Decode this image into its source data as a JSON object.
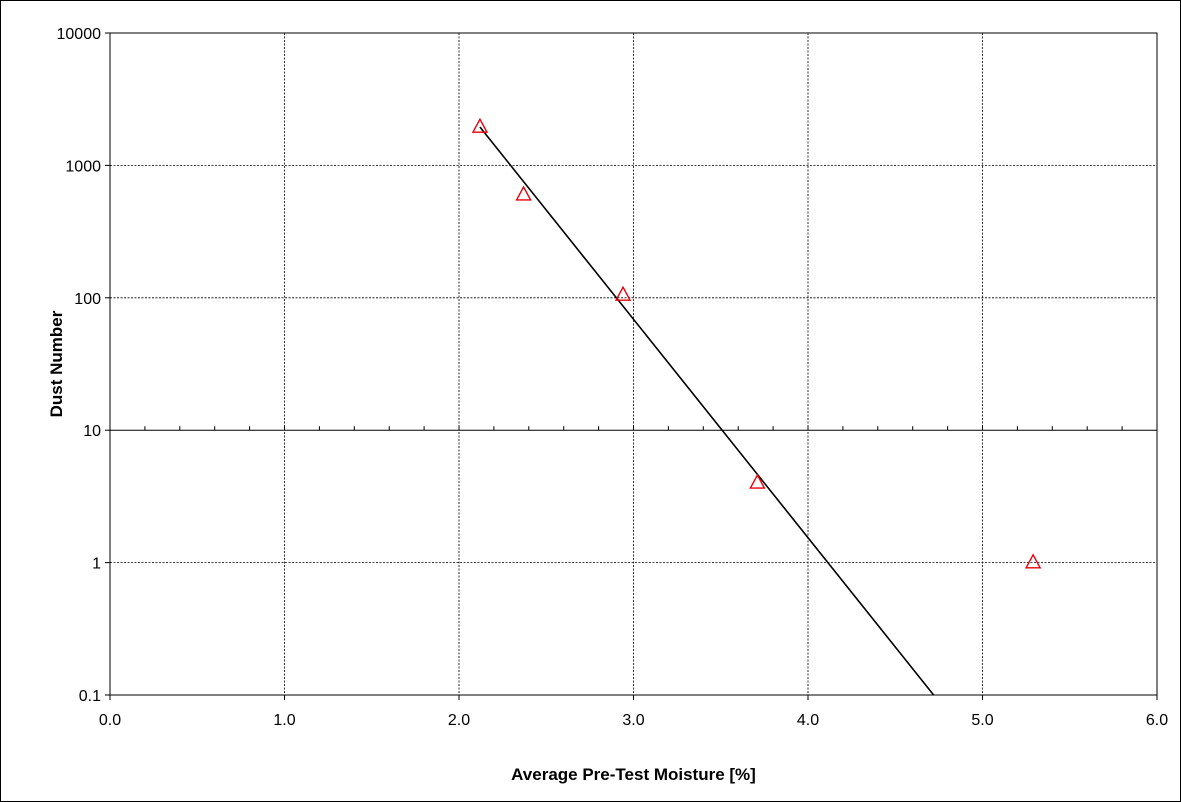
{
  "chart_data": {
    "type": "scatter",
    "xlabel": "Average Pre-Test Moisture [%]",
    "ylabel": "Dust Number",
    "xlim": [
      0,
      6
    ],
    "ylim": [
      0.1,
      10000
    ],
    "y_scale": "log",
    "grid": true,
    "x_ticks": [
      "0.0",
      "1.0",
      "2.0",
      "3.0",
      "4.0",
      "5.0",
      "6.0"
    ],
    "y_ticks": [
      "0.1",
      "1",
      "10",
      "100",
      "1000",
      "10000"
    ],
    "series": [
      {
        "marker": "triangle-open",
        "color": "#e8000b",
        "points": [
          {
            "x": 2.12,
            "y": 1950
          },
          {
            "x": 2.37,
            "y": 600
          },
          {
            "x": 2.94,
            "y": 105
          },
          {
            "x": 3.71,
            "y": 4
          },
          {
            "x": 5.29,
            "y": 1
          }
        ]
      }
    ],
    "trendline": {
      "color": "#000000",
      "points": [
        {
          "x": 2.12,
          "y": 1950
        },
        {
          "x": 4.72,
          "y": 0.1
        }
      ]
    }
  }
}
